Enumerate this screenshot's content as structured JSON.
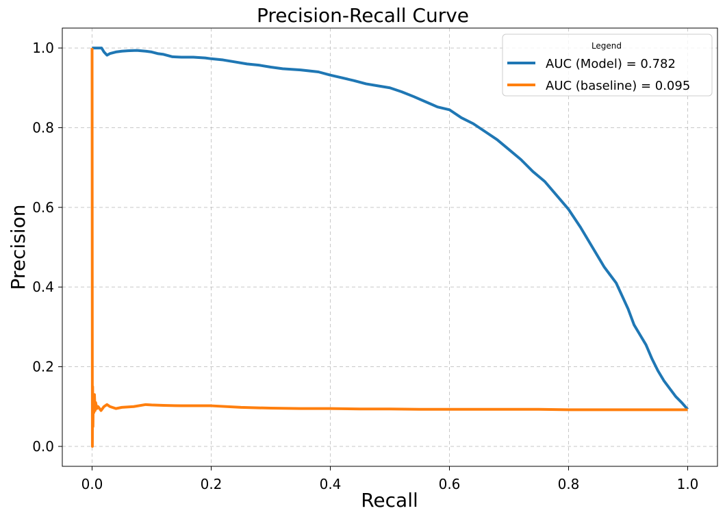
{
  "chart_data": {
    "type": "line",
    "title": "Precision-Recall Curve",
    "xlabel": "Recall",
    "ylabel": "Precision",
    "xlim": [
      -0.05,
      1.05
    ],
    "ylim": [
      -0.05,
      1.05
    ],
    "xticks": [
      0.0,
      0.2,
      0.4,
      0.6,
      0.8,
      1.0
    ],
    "yticks": [
      0.0,
      0.2,
      0.4,
      0.6,
      0.8,
      1.0
    ],
    "xtick_labels": [
      "0.0",
      "0.2",
      "0.4",
      "0.6",
      "0.8",
      "1.0"
    ],
    "ytick_labels": [
      "0.0",
      "0.2",
      "0.4",
      "0.6",
      "0.8",
      "1.0"
    ],
    "grid": true,
    "legend_title": "Legend",
    "legend_position": "top-right",
    "series": [
      {
        "name": "AUC (Model) = 0.782",
        "color": "#1f77b4",
        "x": [
          0.0,
          0.003,
          0.008,
          0.012,
          0.016,
          0.02,
          0.025,
          0.03,
          0.04,
          0.05,
          0.06,
          0.075,
          0.09,
          0.1,
          0.11,
          0.12,
          0.135,
          0.15,
          0.17,
          0.19,
          0.2,
          0.22,
          0.24,
          0.26,
          0.28,
          0.3,
          0.32,
          0.35,
          0.38,
          0.4,
          0.42,
          0.44,
          0.46,
          0.48,
          0.5,
          0.52,
          0.54,
          0.56,
          0.58,
          0.6,
          0.62,
          0.64,
          0.66,
          0.68,
          0.7,
          0.72,
          0.74,
          0.76,
          0.78,
          0.8,
          0.82,
          0.84,
          0.86,
          0.88,
          0.9,
          0.91,
          0.92,
          0.93,
          0.94,
          0.95,
          0.96,
          0.97,
          0.98,
          0.99,
          1.0
        ],
        "y": [
          1.0,
          1.0,
          1.0,
          1.0,
          1.0,
          0.99,
          0.982,
          0.986,
          0.99,
          0.992,
          0.993,
          0.994,
          0.992,
          0.99,
          0.986,
          0.984,
          0.978,
          0.977,
          0.977,
          0.975,
          0.973,
          0.97,
          0.965,
          0.96,
          0.957,
          0.952,
          0.948,
          0.945,
          0.94,
          0.932,
          0.925,
          0.918,
          0.91,
          0.905,
          0.9,
          0.89,
          0.878,
          0.865,
          0.852,
          0.845,
          0.825,
          0.81,
          0.79,
          0.77,
          0.745,
          0.72,
          0.69,
          0.665,
          0.63,
          0.595,
          0.55,
          0.5,
          0.45,
          0.41,
          0.345,
          0.305,
          0.28,
          0.255,
          0.22,
          0.19,
          0.165,
          0.145,
          0.125,
          0.11,
          0.093
        ]
      },
      {
        "name": "AUC (baseline) = 0.095",
        "color": "#ff7f0e",
        "x": [
          0.0,
          0.0005,
          0.001,
          0.0015,
          0.002,
          0.003,
          0.004,
          0.005,
          0.006,
          0.008,
          0.01,
          0.015,
          0.02,
          0.025,
          0.03,
          0.04,
          0.05,
          0.07,
          0.09,
          0.1,
          0.12,
          0.15,
          0.2,
          0.25,
          0.3,
          0.35,
          0.4,
          0.45,
          0.5,
          0.55,
          0.6,
          0.65,
          0.7,
          0.75,
          0.8,
          0.85,
          0.9,
          0.95,
          1.0
        ],
        "y": [
          1.0,
          0.0,
          0.15,
          0.05,
          0.12,
          0.085,
          0.13,
          0.09,
          0.11,
          0.095,
          0.1,
          0.09,
          0.1,
          0.105,
          0.1,
          0.095,
          0.098,
          0.1,
          0.105,
          0.104,
          0.103,
          0.102,
          0.102,
          0.098,
          0.096,
          0.095,
          0.095,
          0.094,
          0.094,
          0.093,
          0.093,
          0.093,
          0.093,
          0.093,
          0.092,
          0.092,
          0.092,
          0.092,
          0.092
        ]
      }
    ]
  }
}
